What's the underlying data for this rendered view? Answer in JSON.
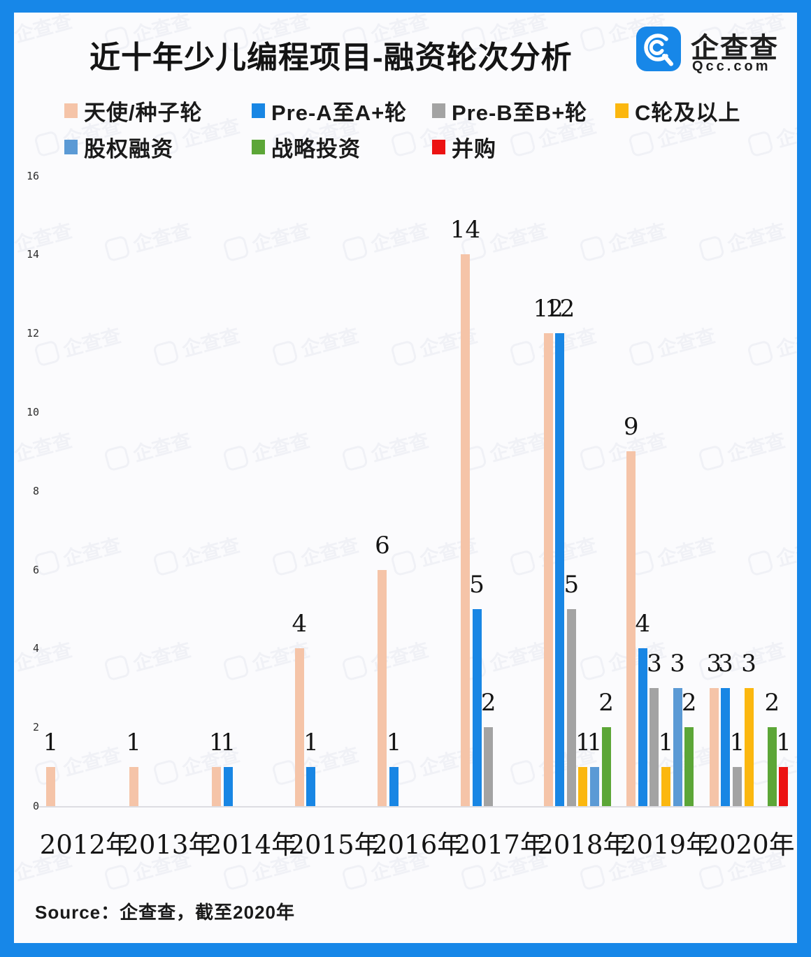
{
  "frame": {
    "border_color": "#1787E8",
    "panel_color": "#FBFBFD"
  },
  "header": {
    "title": "近十年少儿编程项目-融资轮次分析",
    "logo": {
      "name": "企查查",
      "domain": "Qcc.com",
      "color": "#1787E8",
      "icon": "qcc-spiral-q-icon"
    }
  },
  "source_note": "Source：企查查，截至2020年",
  "chart_data": {
    "type": "bar",
    "title": "近十年少儿编程项目-融资轮次分析",
    "categories": [
      "2012年",
      "2013年",
      "2014年",
      "2015年",
      "2016年",
      "2017年",
      "2018年",
      "2019年",
      "2020年"
    ],
    "series": [
      {
        "key": "angel-seed",
        "name": "天使/种子轮",
        "color": "#F5C4A8",
        "values": [
          1,
          1,
          1,
          4,
          6,
          14,
          12,
          9,
          3
        ]
      },
      {
        "key": "pre-a",
        "name": "Pre-A至A+轮",
        "color": "#1886E4",
        "values": [
          0,
          0,
          1,
          1,
          1,
          5,
          12,
          4,
          3
        ]
      },
      {
        "key": "pre-b",
        "name": "Pre-B至B+轮",
        "color": "#A3A3A3",
        "values": [
          0,
          0,
          0,
          0,
          0,
          2,
          5,
          3,
          1
        ]
      },
      {
        "key": "c-plus",
        "name": "C轮及以上",
        "color": "#FBB70F",
        "values": [
          0,
          0,
          0,
          0,
          0,
          0,
          1,
          1,
          3
        ]
      },
      {
        "key": "equity",
        "name": "股权融资",
        "color": "#5B9AD5",
        "values": [
          0,
          0,
          0,
          0,
          0,
          0,
          1,
          3,
          0
        ]
      },
      {
        "key": "strategic",
        "name": "战略投资",
        "color": "#5CA637",
        "values": [
          0,
          0,
          0,
          0,
          0,
          0,
          2,
          2,
          2
        ]
      },
      {
        "key": "ma",
        "name": "并购",
        "color": "#EC1212",
        "values": [
          0,
          0,
          0,
          0,
          0,
          0,
          0,
          0,
          1
        ]
      }
    ],
    "ylim": [
      0,
      16
    ],
    "yticks": [
      0,
      2,
      4,
      6,
      8,
      10,
      12,
      14,
      16
    ],
    "grid": false,
    "bar_value_labels": true,
    "legend_position": "top",
    "legend_rows": [
      [
        "天使/种子轮",
        "Pre-A至A+轮",
        "Pre-B至B+轮",
        "C轮及以上"
      ],
      [
        "股权融资",
        "战略投资",
        "并购"
      ]
    ]
  }
}
